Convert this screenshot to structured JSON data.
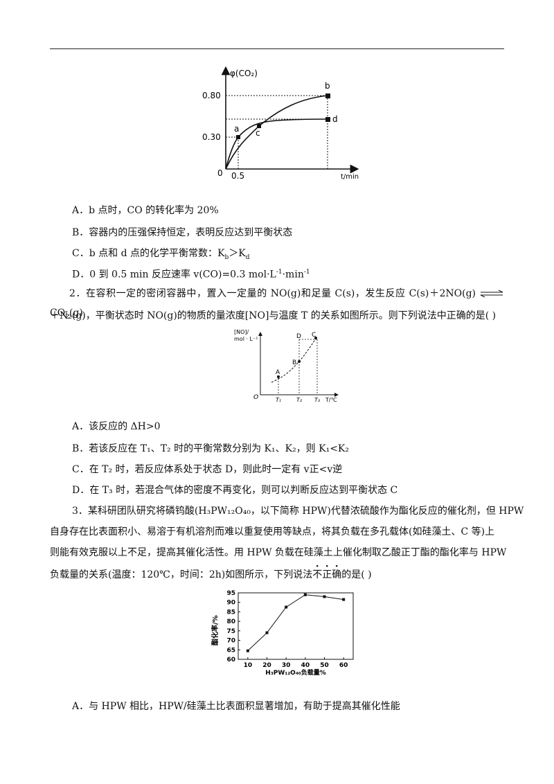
{
  "fig1": {
    "y_label": "φ(CO₂)",
    "x_label": "t/min",
    "y_ticks": [
      "0.80",
      "0.30"
    ],
    "x_ticks": [
      "0.5"
    ],
    "origin": "0",
    "points": [
      "a",
      "b",
      "c",
      "d"
    ]
  },
  "q1_options": [
    "A．b 点时，CO 的转化率为 20%",
    "B．容器内的压强保持恒定，表明反应达到平衡状态",
    "C．b 点和 d 点的化学平衡常数：K",
    "D．0 到 0.5 min 反应速率 v(CO)=0.3 mol·L"
  ],
  "q1c": {
    "sub_b": "b",
    "gt": "＞K",
    "sub_d": "d"
  },
  "q1d": {
    "sup1": "-1",
    "mid": "·min",
    "sup2": "-1"
  },
  "q2": {
    "part1": "2．在容积一定的密闭容器中，置入一定量的 NO(g)和足量 C(s)，发生反应 C(s)＋2NO(g)",
    "part2": "CO",
    "sub2": "2",
    "part3": "(g)",
    "line2": "＋N₂(g)，平衡状态时 NO(g)的物质的量浓度[NO]与温度 T 的关系如图所示。则下列说法中正确的是(      )"
  },
  "fig2": {
    "y_label_1": "[NO]/",
    "y_label_2": "mol · L⁻¹",
    "x_label": "T/℃",
    "origin": "O",
    "x_ticks": [
      "T₁",
      "T₂",
      "T₃"
    ],
    "points": [
      "A",
      "B",
      "C",
      "D"
    ]
  },
  "q2_options": [
    "A．该反应的 ΔH>0",
    "B．若该反应在 T₁、T₂ 时的平衡常数分别为 K₁、K₂，则 K₁<K₂",
    "C．在 T₂ 时，若反应体系处于状态 D，则此时一定有 v正<v逆",
    "D．在 T₃ 时，若混合气体的密度不再变化，则可以判断反应达到平衡状态 C"
  ],
  "q3": {
    "l1": "3．某科研团队研究将磷钨酸(H₃PW₁₂O₄₀，以下简称 HPW)代替浓硫酸作为酯化反应的催化剂，但 HPW",
    "l2": "自身存在比表面积小、易溶于有机溶剂而难以重复使用等缺点，将其负载在多孔载体(如硅藻土、C 等)上",
    "l3": "则能有效克服以上不足，提高其催化活性。用 HPW 负载在硅藻土上催化制取乙酸正丁酯的酯化率与 HPW",
    "l4a": "负载量的关系(温度：120℃，时间：2h)如图所示，下列说法",
    "l4em": [
      "不",
      "正",
      "确"
    ],
    "l4b": "的是(      )"
  },
  "chart_data": {
    "type": "line",
    "x": [
      10,
      20,
      30,
      40,
      50,
      60
    ],
    "series": [
      {
        "values": [
          64.5,
          74,
          87.5,
          94,
          93,
          91.5
        ]
      }
    ],
    "xlabel": "H₃PW₁₂O₄₀负载量%",
    "ylabel": "酯化率/%",
    "xlim": [
      5,
      65
    ],
    "ylim": [
      60,
      95
    ],
    "x_ticks": [
      "10",
      "20",
      "30",
      "40",
      "50",
      "60"
    ],
    "y_ticks": [
      "60",
      "65",
      "70",
      "75",
      "80",
      "85",
      "90",
      "95"
    ]
  },
  "q3_options": [
    "A．与 HPW 相比，HPW/硅藻土比表面积显著增加，有助于提高其催化性能"
  ]
}
